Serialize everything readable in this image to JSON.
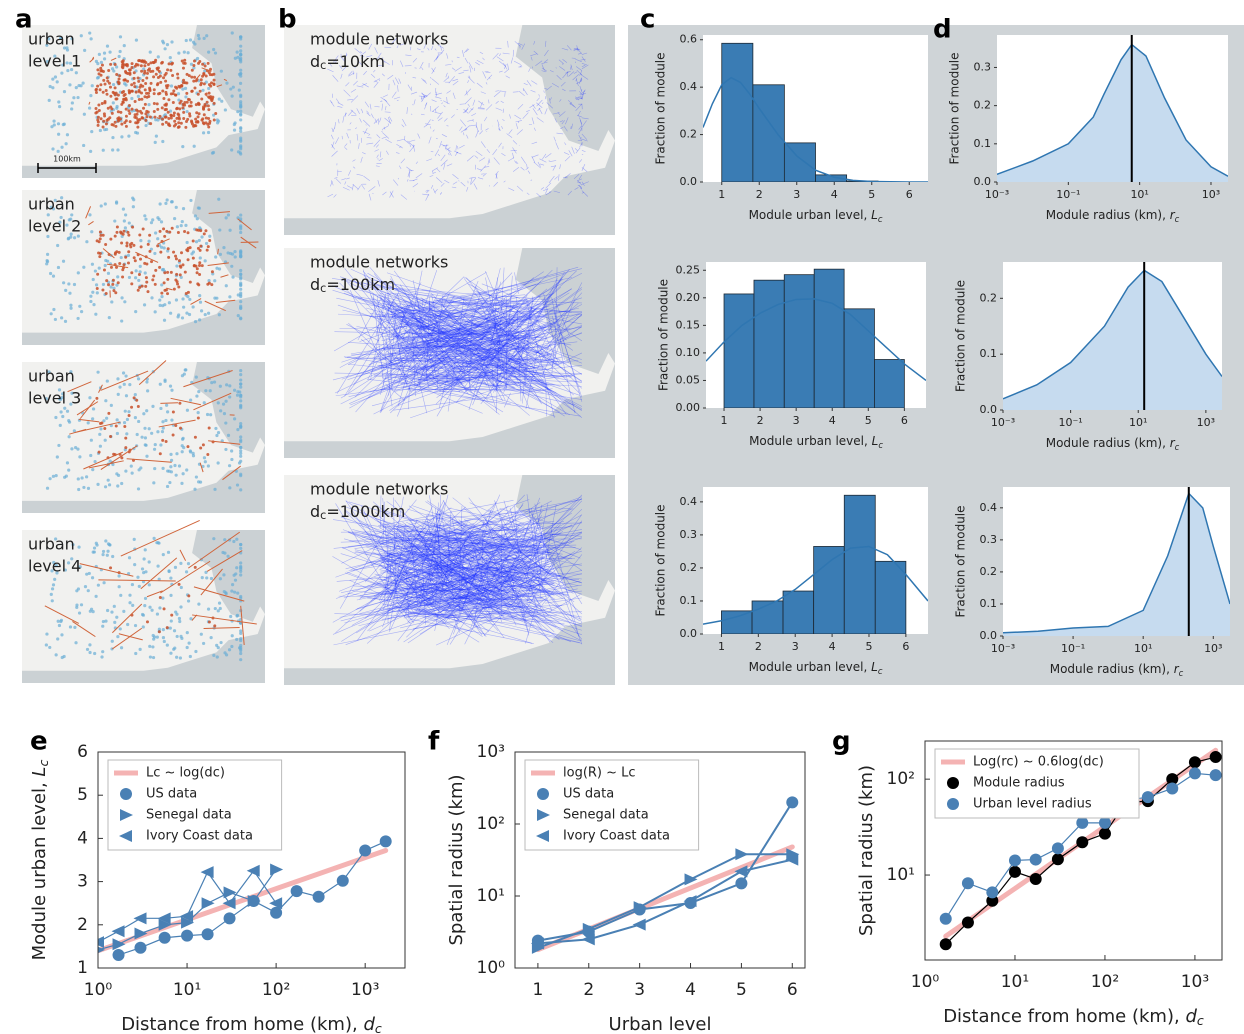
{
  "panel_labels": [
    "a",
    "b",
    "c",
    "d",
    "e",
    "f",
    "g"
  ],
  "urban_maps": [
    [
      "urban",
      "level 1"
    ],
    [
      "urban",
      "level 2"
    ],
    [
      "urban",
      "level 3"
    ],
    [
      "urban",
      "level 4"
    ]
  ],
  "scale_bar": "100km",
  "network_maps": [
    {
      "title": "module networks",
      "symbol": "d",
      "sub": "c",
      "value": "=10km"
    },
    {
      "title": "module networks",
      "symbol": "d",
      "sub": "c",
      "value": "=100km"
    },
    {
      "title": "module networks",
      "symbol": "d",
      "sub": "c",
      "value": "=1000km"
    }
  ],
  "chart_data": [
    {
      "type": "histogram",
      "bins": [
        1,
        1.83,
        2.67,
        3.5,
        4.33,
        5.17,
        6
      ],
      "values": [
        0.585,
        0.41,
        0.165,
        0.03,
        0.004,
        0
      ],
      "color": "#3a7cb4",
      "kde": {
        "x": [
          0.5,
          0.75,
          1,
          1.25,
          1.5,
          1.75,
          2,
          2.5,
          3,
          3.5,
          4,
          4.5,
          5,
          5.5,
          6,
          6.5
        ],
        "values": [
          0.23,
          0.33,
          0.41,
          0.44,
          0.42,
          0.37,
          0.31,
          0.2,
          0.11,
          0.05,
          0.02,
          0.007,
          0.002,
          0.001,
          0,
          0
        ]
      },
      "kde_color": "#2f76b1",
      "xlim": [
        0.5,
        6.5
      ],
      "xticks": [
        1,
        2,
        3,
        4,
        5,
        6
      ],
      "ylim": [
        0,
        0.62
      ],
      "yticks": [
        {
          "value": 0,
          "label": "0.0"
        },
        0.2,
        0.4,
        0.6
      ],
      "xlabel": {
        "text": "Module urban level, ",
        "symbol": "L",
        "sub": "c"
      },
      "ylabel": "Fraction of module"
    },
    {
      "type": "area",
      "x": [
        0.001,
        0.01,
        0.1,
        0.5,
        1,
        3,
        6,
        15,
        50,
        200,
        1000,
        3000
      ],
      "values": [
        0.02,
        0.055,
        0.1,
        0.17,
        0.23,
        0.32,
        0.36,
        0.33,
        0.22,
        0.11,
        0.04,
        0.015
      ],
      "median": 6,
      "color": "#c6dbef",
      "line_color": "#2f76b1",
      "xscale": "log",
      "xlim": [
        0.001,
        3000
      ],
      "xticks": [
        {
          "value": 0.001,
          "label": "10⁻³"
        },
        {
          "value": 0.1,
          "label": "10⁻¹"
        },
        {
          "value": 10,
          "label": "10¹"
        },
        {
          "value": 1000,
          "label": "10³"
        }
      ],
      "ylim": [
        0,
        0.385
      ],
      "yticks": [
        {
          "value": 0,
          "label": "0.0"
        },
        0.1,
        0.2,
        0.3
      ],
      "xlabel": {
        "text": "Module radius (km), ",
        "symbol": "r",
        "sub": "c"
      },
      "ylabel": "Fraction of module"
    },
    {
      "type": "histogram",
      "bins": [
        1,
        1.83,
        2.67,
        3.5,
        4.33,
        5.17,
        6
      ],
      "values": [
        0.207,
        0.232,
        0.242,
        0.252,
        0.18,
        0.088
      ],
      "color": "#3a7cb4",
      "kde": {
        "x": [
          0.5,
          1,
          1.5,
          2,
          2.5,
          3,
          3.5,
          4,
          4.5,
          5,
          5.5,
          6,
          6.6
        ],
        "values": [
          0.085,
          0.12,
          0.15,
          0.172,
          0.188,
          0.197,
          0.198,
          0.19,
          0.17,
          0.14,
          0.11,
          0.08,
          0.05
        ]
      },
      "kde_color": "#2f76b1",
      "xlim": [
        0.5,
        6.6
      ],
      "xticks": [
        1,
        2,
        3,
        4,
        5,
        6
      ],
      "ylim": [
        0,
        0.265
      ],
      "yticks": [
        {
          "value": 0,
          "label": "0.00"
        },
        0.05,
        {
          "value": 0.1,
          "label": "0.10"
        },
        0.15,
        {
          "value": 0.2,
          "label": "0.20"
        },
        0.25
      ],
      "xlabel": {
        "text": "Module urban level, ",
        "symbol": "L",
        "sub": "c"
      },
      "ylabel": "Fraction of module"
    },
    {
      "type": "area",
      "x": [
        0.001,
        0.01,
        0.1,
        1,
        5,
        15,
        50,
        200,
        1000,
        3000
      ],
      "values": [
        0.02,
        0.045,
        0.085,
        0.15,
        0.22,
        0.25,
        0.23,
        0.17,
        0.1,
        0.06
      ],
      "median": 15,
      "color": "#c6dbef",
      "line_color": "#2f76b1",
      "xscale": "log",
      "xlim": [
        0.001,
        3000
      ],
      "xticks": [
        {
          "value": 0.001,
          "label": "10⁻³"
        },
        {
          "value": 0.1,
          "label": "10⁻¹"
        },
        {
          "value": 10,
          "label": "10¹"
        },
        {
          "value": 1000,
          "label": "10³"
        }
      ],
      "ylim": [
        0,
        0.265
      ],
      "yticks": [
        {
          "value": 0,
          "label": "0.0"
        },
        0.1,
        0.2
      ],
      "xlabel": {
        "text": "Module radius (km), ",
        "symbol": "r",
        "sub": "c"
      },
      "ylabel": "Fraction of module"
    },
    {
      "type": "histogram",
      "bins": [
        1,
        1.83,
        2.67,
        3.5,
        4.33,
        5.17,
        6
      ],
      "values": [
        0.07,
        0.1,
        0.13,
        0.265,
        0.42,
        0.22
      ],
      "color": "#3a7cb4",
      "kde": {
        "x": [
          0.5,
          1,
          1.5,
          2,
          2.5,
          3,
          3.5,
          4,
          4.5,
          5,
          5.5,
          6,
          6.6
        ],
        "values": [
          0.03,
          0.04,
          0.055,
          0.075,
          0.1,
          0.135,
          0.18,
          0.225,
          0.26,
          0.265,
          0.24,
          0.18,
          0.1
        ]
      },
      "kde_color": "#2f76b1",
      "xlim": [
        0.5,
        6.6
      ],
      "xticks": [
        1,
        2,
        3,
        4,
        5,
        6
      ],
      "ylim": [
        0,
        0.445
      ],
      "yticks": [
        {
          "value": 0,
          "label": "0.0"
        },
        0.1,
        0.2,
        0.3,
        0.4
      ],
      "xlabel": {
        "text": "Module urban level, ",
        "symbol": "L",
        "sub": "c"
      },
      "ylabel": "Fraction of module"
    },
    {
      "type": "area",
      "x": [
        0.001,
        0.01,
        0.1,
        1,
        10,
        50,
        200,
        500,
        1000,
        3000
      ],
      "values": [
        0.01,
        0.015,
        0.025,
        0.03,
        0.08,
        0.25,
        0.445,
        0.4,
        0.28,
        0.1
      ],
      "median": 200,
      "color": "#c6dbef",
      "line_color": "#2f76b1",
      "xscale": "log",
      "xlim": [
        0.001,
        3000
      ],
      "xticks": [
        {
          "value": 0.001,
          "label": "10⁻³"
        },
        {
          "value": 0.1,
          "label": "10⁻¹"
        },
        {
          "value": 10,
          "label": "10¹"
        },
        {
          "value": 1000,
          "label": "10³"
        }
      ],
      "ylim": [
        0,
        0.465
      ],
      "yticks": [
        {
          "value": 0,
          "label": "0.0"
        },
        0.1,
        0.2,
        0.3,
        0.4
      ],
      "xlabel": {
        "text": "Module radius (km), ",
        "symbol": "r",
        "sub": "c"
      },
      "ylabel": "Fraction of module"
    },
    {
      "type": "line",
      "xscale": "log",
      "xlim": [
        1,
        2800
      ],
      "xticks": [
        {
          "value": 1,
          "label": "10⁰"
        },
        {
          "value": 10,
          "label": "10¹"
        },
        {
          "value": 100,
          "label": "10²"
        },
        {
          "value": 1000,
          "label": "10³"
        }
      ],
      "ylim": [
        1,
        6
      ],
      "yticks": [
        1,
        2,
        3,
        4,
        5,
        6
      ],
      "legend": "upper left",
      "xlabel": {
        "text": "Distance from home (km), ",
        "symbol": "d",
        "sub": "c"
      },
      "ylabel": {
        "text": "Module urban level, ",
        "symbol": "L",
        "sub": "c"
      },
      "series": [
        {
          "name": "Lc ~ log(dc)",
          "color": "#f4b3b3",
          "marker": "none",
          "width": 5,
          "x": [
            1,
            1700
          ],
          "values": [
            1.4,
            3.72
          ]
        },
        {
          "name": "US data",
          "color": "#4a80b4",
          "marker": "circle",
          "width": 1.2,
          "x": [
            1.7,
            3,
            5.6,
            10,
            17,
            30,
            56,
            100,
            170,
            300,
            560,
            1000,
            1700
          ],
          "values": [
            1.3,
            1.47,
            1.7,
            1.75,
            1.78,
            2.15,
            2.55,
            2.28,
            2.78,
            2.65,
            3.02,
            3.72,
            3.93
          ]
        },
        {
          "name": "Senegal data",
          "color": "#4a80b4",
          "marker": "triangle-right",
          "width": 1.2,
          "x": [
            1,
            1.7,
            3,
            5.6,
            10,
            17,
            30,
            56,
            100
          ],
          "values": [
            1.42,
            1.55,
            1.8,
            2.0,
            2.05,
            2.5,
            2.75,
            2.55,
            3.28
          ]
        },
        {
          "name": "Ivory Coast data",
          "color": "#4a80b4",
          "marker": "triangle-left",
          "width": 1.2,
          "x": [
            1,
            1.7,
            3,
            5.6,
            10,
            17,
            30,
            56,
            100
          ],
          "values": [
            1.6,
            1.85,
            2.15,
            2.15,
            2.2,
            3.22,
            2.5,
            3.25,
            2.5
          ]
        }
      ]
    },
    {
      "type": "line",
      "yscale": "log",
      "xlim": [
        0.55,
        6.25
      ],
      "xticks": [
        1,
        2,
        3,
        4,
        5,
        6
      ],
      "ylim": [
        1,
        1000
      ],
      "yticks": [
        {
          "value": 1,
          "label": "10⁰"
        },
        {
          "value": 10,
          "label": "10¹"
        },
        {
          "value": 100,
          "label": "10²"
        },
        {
          "value": 1000,
          "label": "10³"
        }
      ],
      "legend": "upper left",
      "xlabel": "Urban level",
      "ylabel": "Spatial radius (km)",
      "series": [
        {
          "name": "log(R) ~ Lc",
          "color": "#f4b3b3",
          "marker": "none",
          "width": 5,
          "x": [
            1,
            6
          ],
          "values": [
            1.8,
            48
          ]
        },
        {
          "name": "US data",
          "color": "#4a80b4",
          "marker": "circle",
          "width": 2,
          "x": [
            1,
            2,
            3,
            4,
            5,
            6
          ],
          "values": [
            2.4,
            3.2,
            6.5,
            8,
            15,
            200
          ]
        },
        {
          "name": "Senegal data",
          "color": "#4a80b4",
          "marker": "triangle-right",
          "width": 2,
          "x": [
            1,
            2,
            3,
            4,
            5,
            6
          ],
          "values": [
            1.9,
            3.5,
            7,
            17,
            38,
            38
          ]
        },
        {
          "name": "Ivory Coast data",
          "color": "#4a80b4",
          "marker": "triangle-left",
          "width": 2,
          "x": [
            1,
            2,
            3,
            4,
            5,
            6
          ],
          "values": [
            2.2,
            2.5,
            4,
            8.5,
            22,
            32
          ]
        }
      ]
    },
    {
      "type": "line",
      "xscale": "log",
      "yscale": "log",
      "xlim": [
        1,
        2000
      ],
      "xticks": [
        {
          "value": 1,
          "label": "10⁰"
        },
        {
          "value": 10,
          "label": "10¹"
        },
        {
          "value": 100,
          "label": "10²"
        },
        {
          "value": 1000,
          "label": "10³"
        }
      ],
      "ylim": [
        1.3,
        250
      ],
      "yticks": [
        {
          "value": 10,
          "label": "10¹"
        },
        {
          "value": 100,
          "label": "10²"
        }
      ],
      "legend": "upper left",
      "xlabel": {
        "text": "Distance from home (km), ",
        "symbol": "d",
        "sub": "c"
      },
      "ylabel": "Spatial radius (km)",
      "series": [
        {
          "name": "Log(rc) ~ 0.6log(dc)",
          "color": "#f4b3b3",
          "marker": "none",
          "width": 5,
          "x": [
            1.7,
            1700
          ],
          "values": [
            2.3,
            200
          ]
        },
        {
          "name": "Module radius",
          "color": "#000000",
          "marker": "circle",
          "width": 1.2,
          "x": [
            1.7,
            3,
            5.6,
            10,
            17,
            30,
            56,
            100,
            170,
            300,
            560,
            1000,
            1700
          ],
          "values": [
            1.9,
            3.2,
            5.4,
            10.8,
            9.1,
            14.6,
            22,
            27,
            57,
            59,
            100,
            150,
            170
          ]
        },
        {
          "name": "Urban level radius",
          "color": "#4a80b4",
          "marker": "circle",
          "width": 1.2,
          "x": [
            1.7,
            3,
            5.6,
            10,
            17,
            30,
            56,
            100,
            170,
            300,
            560,
            1000,
            1700
          ],
          "values": [
            3.5,
            8.2,
            6.6,
            14.2,
            14.5,
            19,
            35,
            35,
            60,
            65,
            80,
            115,
            110
          ]
        }
      ]
    }
  ]
}
